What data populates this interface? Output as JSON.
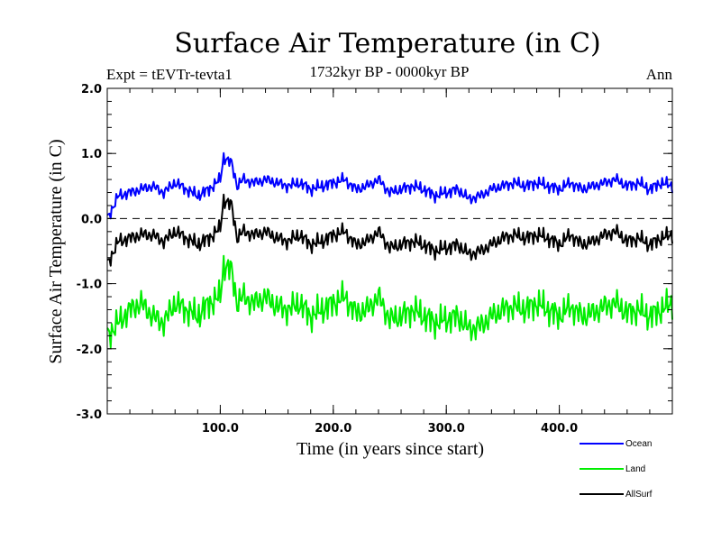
{
  "chart_data": {
    "type": "line",
    "title": "Surface Air Temperature (in C)",
    "subtitle": "1732kyr BP - 0000kyr BP",
    "experiment_label": "Expt = tEVTr-tevta1",
    "season_label": "Ann",
    "xlabel": "Time (in years since start)",
    "ylabel": "Surface Air Temperature (in C)",
    "xlim": [
      0,
      500
    ],
    "ylim": [
      -3.0,
      2.0
    ],
    "x_ticks": [
      100,
      200,
      300,
      400
    ],
    "x_tick_labels": [
      "100.0",
      "200.0",
      "300.0",
      "400.0"
    ],
    "y_ticks": [
      -3,
      -2,
      -1,
      0,
      1,
      2
    ],
    "y_tick_labels": [
      "-3.0",
      "-2.0",
      "-1.0",
      "0.0",
      "1.0",
      "2.0"
    ],
    "reference_line": 0.0,
    "legend_position": "bottom-right",
    "series": [
      {
        "name": "Ocean",
        "color": "#0000ff",
        "x": [
          0,
          10,
          20,
          30,
          40,
          50,
          60,
          70,
          80,
          90,
          100,
          103,
          106,
          110,
          115,
          120,
          130,
          140,
          150,
          160,
          170,
          180,
          190,
          200,
          210,
          220,
          230,
          240,
          250,
          260,
          270,
          280,
          290,
          300,
          310,
          320,
          330,
          340,
          350,
          360,
          370,
          380,
          390,
          400,
          410,
          420,
          430,
          440,
          450,
          460,
          470,
          480,
          490,
          500
        ],
        "values": [
          0.0,
          0.35,
          0.4,
          0.45,
          0.5,
          0.4,
          0.55,
          0.45,
          0.35,
          0.45,
          0.6,
          0.95,
          0.9,
          0.85,
          0.5,
          0.6,
          0.55,
          0.6,
          0.55,
          0.5,
          0.55,
          0.45,
          0.5,
          0.55,
          0.6,
          0.45,
          0.5,
          0.6,
          0.4,
          0.45,
          0.5,
          0.45,
          0.35,
          0.4,
          0.45,
          0.3,
          0.35,
          0.45,
          0.5,
          0.55,
          0.5,
          0.55,
          0.5,
          0.45,
          0.55,
          0.45,
          0.5,
          0.55,
          0.6,
          0.5,
          0.55,
          0.45,
          0.55,
          0.5
        ]
      },
      {
        "name": "Land",
        "color": "#00ee00",
        "x": [
          0,
          10,
          20,
          30,
          40,
          50,
          60,
          70,
          80,
          90,
          100,
          103,
          106,
          110,
          115,
          120,
          130,
          140,
          150,
          160,
          170,
          180,
          190,
          200,
          210,
          220,
          230,
          240,
          250,
          260,
          270,
          280,
          290,
          300,
          310,
          320,
          330,
          340,
          350,
          360,
          370,
          380,
          390,
          400,
          410,
          420,
          430,
          440,
          450,
          460,
          470,
          480,
          490,
          500
        ],
        "values": [
          -1.8,
          -1.6,
          -1.4,
          -1.3,
          -1.5,
          -1.6,
          -1.3,
          -1.4,
          -1.5,
          -1.3,
          -1.2,
          -0.7,
          -0.75,
          -0.8,
          -1.3,
          -1.2,
          -1.3,
          -1.2,
          -1.35,
          -1.4,
          -1.3,
          -1.5,
          -1.4,
          -1.3,
          -1.2,
          -1.45,
          -1.4,
          -1.2,
          -1.55,
          -1.5,
          -1.4,
          -1.5,
          -1.6,
          -1.55,
          -1.5,
          -1.7,
          -1.65,
          -1.5,
          -1.4,
          -1.35,
          -1.4,
          -1.3,
          -1.4,
          -1.5,
          -1.35,
          -1.5,
          -1.45,
          -1.35,
          -1.3,
          -1.45,
          -1.4,
          -1.5,
          -1.4,
          -1.3
        ]
      },
      {
        "name": "AllSurf",
        "color": "#000000",
        "x": [
          0,
          10,
          20,
          30,
          40,
          50,
          60,
          70,
          80,
          90,
          100,
          103,
          106,
          110,
          115,
          120,
          130,
          140,
          150,
          160,
          170,
          180,
          190,
          200,
          210,
          220,
          230,
          240,
          250,
          260,
          270,
          280,
          290,
          300,
          310,
          320,
          330,
          340,
          350,
          360,
          370,
          380,
          390,
          400,
          410,
          420,
          430,
          440,
          450,
          460,
          470,
          480,
          490,
          500
        ],
        "values": [
          -0.7,
          -0.35,
          -0.3,
          -0.25,
          -0.25,
          -0.35,
          -0.2,
          -0.3,
          -0.4,
          -0.3,
          -0.15,
          0.3,
          0.25,
          0.2,
          -0.3,
          -0.2,
          -0.25,
          -0.2,
          -0.3,
          -0.35,
          -0.25,
          -0.4,
          -0.35,
          -0.25,
          -0.2,
          -0.4,
          -0.35,
          -0.2,
          -0.45,
          -0.4,
          -0.35,
          -0.4,
          -0.5,
          -0.45,
          -0.4,
          -0.55,
          -0.5,
          -0.4,
          -0.3,
          -0.25,
          -0.3,
          -0.25,
          -0.3,
          -0.4,
          -0.25,
          -0.4,
          -0.35,
          -0.25,
          -0.2,
          -0.35,
          -0.3,
          -0.4,
          -0.3,
          -0.25
        ]
      }
    ]
  }
}
